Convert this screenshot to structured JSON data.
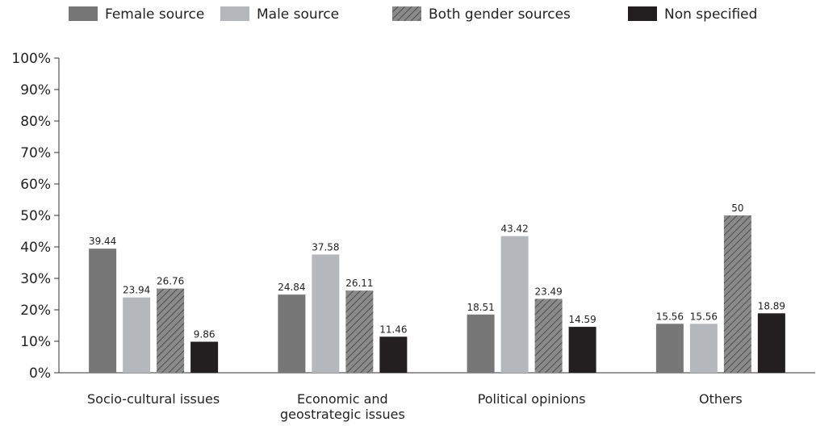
{
  "chart_data": {
    "type": "bar",
    "title": "",
    "xlabel": "",
    "ylabel": "",
    "ylim": [
      0,
      100
    ],
    "y_ticks": [
      "0%",
      "10%",
      "20%",
      "30%",
      "40%",
      "50%",
      "60%",
      "70%",
      "80%",
      "90%",
      "100%"
    ],
    "categories": [
      [
        "Socio-cultural issues"
      ],
      [
        "Economic and",
        "geostrategic issues"
      ],
      [
        "Political opinions"
      ],
      [
        "Others"
      ]
    ],
    "series": [
      {
        "name": "Female source",
        "color": "#777777",
        "pattern": "solid",
        "values": [
          39.44,
          24.84,
          18.51,
          15.56
        ],
        "labels": [
          "39.44",
          "24.84",
          "18.51",
          "15.56"
        ]
      },
      {
        "name": "Male source",
        "color": "#b4b8bd",
        "pattern": "solid",
        "values": [
          23.94,
          37.58,
          43.42,
          15.56
        ],
        "labels": [
          "23.94",
          "37.58",
          "43.42",
          "15.56"
        ]
      },
      {
        "name": "Both gender sources",
        "color": "#8a8a8a",
        "pattern": "diagonal-hatch",
        "values": [
          26.76,
          26.11,
          23.49,
          50
        ],
        "labels": [
          "26.76",
          "26.11",
          "23.49",
          "50"
        ]
      },
      {
        "name": "Non specified",
        "color": "#231f20",
        "pattern": "solid",
        "values": [
          9.86,
          11.46,
          14.59,
          18.89
        ],
        "labels": [
          "9.86",
          "11.46",
          "14.59",
          "18.89"
        ]
      }
    ],
    "grid": false,
    "legend_position": "top"
  }
}
